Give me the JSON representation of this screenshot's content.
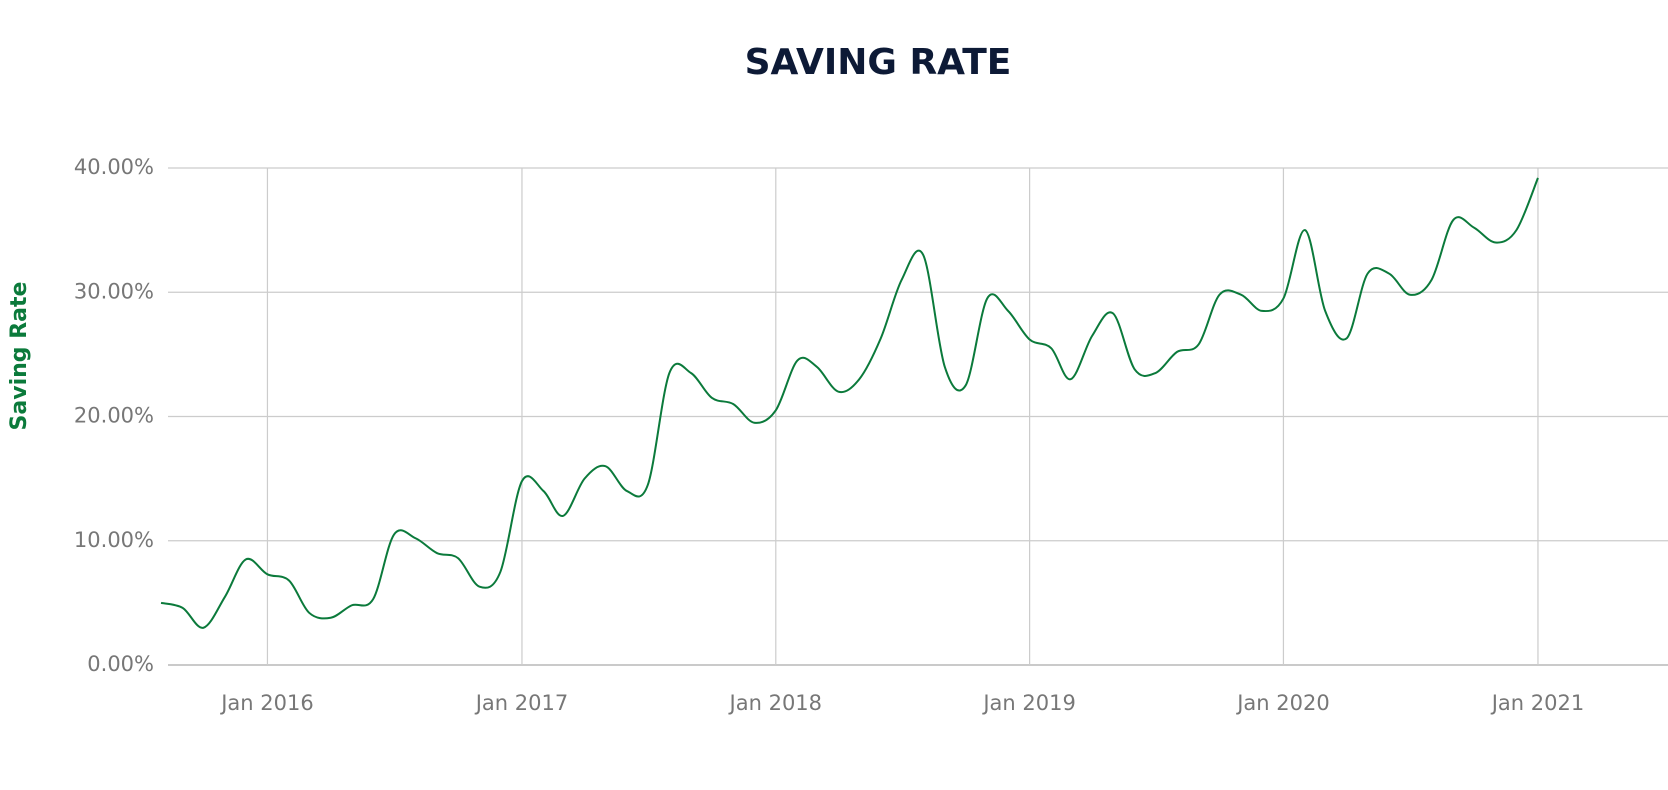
{
  "chart_data": {
    "type": "line",
    "title": "SAVING RATE",
    "y_label": "Saving Rate",
    "x": [
      "2015-08",
      "2015-09",
      "2015-10",
      "2015-11",
      "2015-12",
      "2016-01",
      "2016-02",
      "2016-03",
      "2016-04",
      "2016-05",
      "2016-06",
      "2016-07",
      "2016-08",
      "2016-09",
      "2016-10",
      "2016-11",
      "2016-12",
      "2017-01",
      "2017-02",
      "2017-03",
      "2017-04",
      "2017-05",
      "2017-06",
      "2017-07",
      "2017-08",
      "2017-09",
      "2017-10",
      "2017-11",
      "2017-12",
      "2018-01",
      "2018-02",
      "2018-03",
      "2018-04",
      "2018-05",
      "2018-06",
      "2018-07",
      "2018-08",
      "2018-09",
      "2018-10",
      "2018-11",
      "2018-12",
      "2019-01",
      "2019-02",
      "2019-03",
      "2019-04",
      "2019-05",
      "2019-06",
      "2019-07",
      "2019-08",
      "2019-09",
      "2019-10",
      "2019-11",
      "2019-12",
      "2020-01",
      "2020-02",
      "2020-03",
      "2020-04",
      "2020-05",
      "2020-06",
      "2020-07",
      "2020-08",
      "2020-09",
      "2020-10",
      "2020-11",
      "2020-12",
      "2021-01"
    ],
    "series": [
      {
        "name": "Saving Rate",
        "color": "#0b7a3b",
        "values": [
          5.0,
          4.6,
          3.0,
          5.5,
          8.5,
          7.3,
          6.8,
          4.2,
          3.8,
          4.8,
          5.3,
          10.5,
          10.2,
          9.0,
          8.6,
          6.3,
          7.5,
          14.8,
          14.0,
          12.0,
          15.0,
          16.0,
          14.0,
          14.5,
          23.5,
          23.5,
          21.5,
          21.0,
          19.5,
          20.5,
          24.5,
          24.0,
          22.0,
          23.0,
          26.3,
          31.0,
          33.0,
          24.0,
          22.5,
          29.5,
          28.5,
          26.2,
          25.5,
          23.0,
          26.5,
          28.3,
          23.8,
          23.5,
          25.2,
          25.8,
          29.8,
          29.8,
          28.5,
          29.5,
          35.0,
          28.5,
          26.3,
          31.5,
          31.5,
          29.8,
          31.0,
          35.8,
          35.2,
          34.0,
          35.0,
          39.2
        ]
      }
    ],
    "xlim": [
      "2015-08-11",
      "2021-07-07"
    ],
    "xticks": [
      {
        "value": "2016-01",
        "label": "Jan 2016"
      },
      {
        "value": "2017-01",
        "label": "Jan 2017"
      },
      {
        "value": "2018-01",
        "label": "Jan 2018"
      },
      {
        "value": "2019-01",
        "label": "Jan 2019"
      },
      {
        "value": "2020-01",
        "label": "Jan 2020"
      },
      {
        "value": "2021-01",
        "label": "Jan 2021"
      }
    ],
    "ylim": [
      0,
      40
    ],
    "yticks": [
      {
        "value": 0,
        "label": "0.00%"
      },
      {
        "value": 10,
        "label": "10.00%"
      },
      {
        "value": 20,
        "label": "20.00%"
      },
      {
        "value": 30,
        "label": "30.00%"
      },
      {
        "value": 40,
        "label": "40.00%"
      }
    ],
    "grid": true
  }
}
